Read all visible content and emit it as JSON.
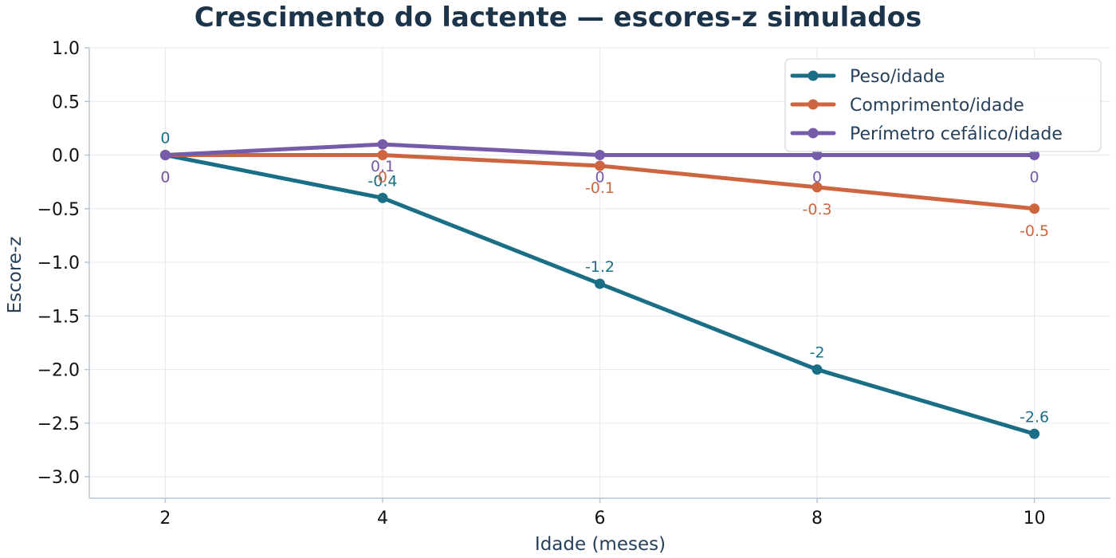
{
  "chart_data": {
    "type": "line",
    "title": "Crescimento do lactente — escores-z simulados",
    "xlabel": "Idade (meses)",
    "ylabel": "Escore-z",
    "x": [
      2,
      4,
      6,
      8,
      10
    ],
    "xlim": [
      1.3,
      10.7
    ],
    "ylim": [
      -3.2,
      1.0
    ],
    "xticks": [
      "2",
      "4",
      "6",
      "8",
      "10"
    ],
    "yticks": [
      "1.0",
      "0.5",
      "0.0",
      "−0.5",
      "−1.0",
      "−1.5",
      "−2.0",
      "−2.5",
      "−3.0"
    ],
    "ytick_values": [
      1.0,
      0.5,
      0.0,
      -0.5,
      -1.0,
      -1.5,
      -2.0,
      -2.5,
      -3.0
    ],
    "grid": true,
    "legend_position": "top-right",
    "series": [
      {
        "name": "Peso/idade",
        "color": "#1a6e85",
        "values": [
          0,
          -0.4,
          -1.2,
          -2,
          -2.6
        ],
        "labels": [
          "0",
          "-0.4",
          "-1.2",
          "-2",
          "-2.6"
        ],
        "label_position": "above"
      },
      {
        "name": "Comprimento/idade",
        "color": "#cd6640",
        "values": [
          0,
          0,
          -0.1,
          -0.3,
          -0.5
        ],
        "labels": [
          "0",
          "0",
          "-0.1",
          "-0.3",
          "-0.5"
        ],
        "label_position": "below"
      },
      {
        "name": "Perímetro cefálico/idade",
        "color": "#765ca8",
        "values": [
          0,
          0.1,
          0,
          0,
          0
        ],
        "labels": [
          "0",
          "0.1",
          "0",
          "0",
          "0"
        ],
        "label_position": "below"
      }
    ]
  }
}
